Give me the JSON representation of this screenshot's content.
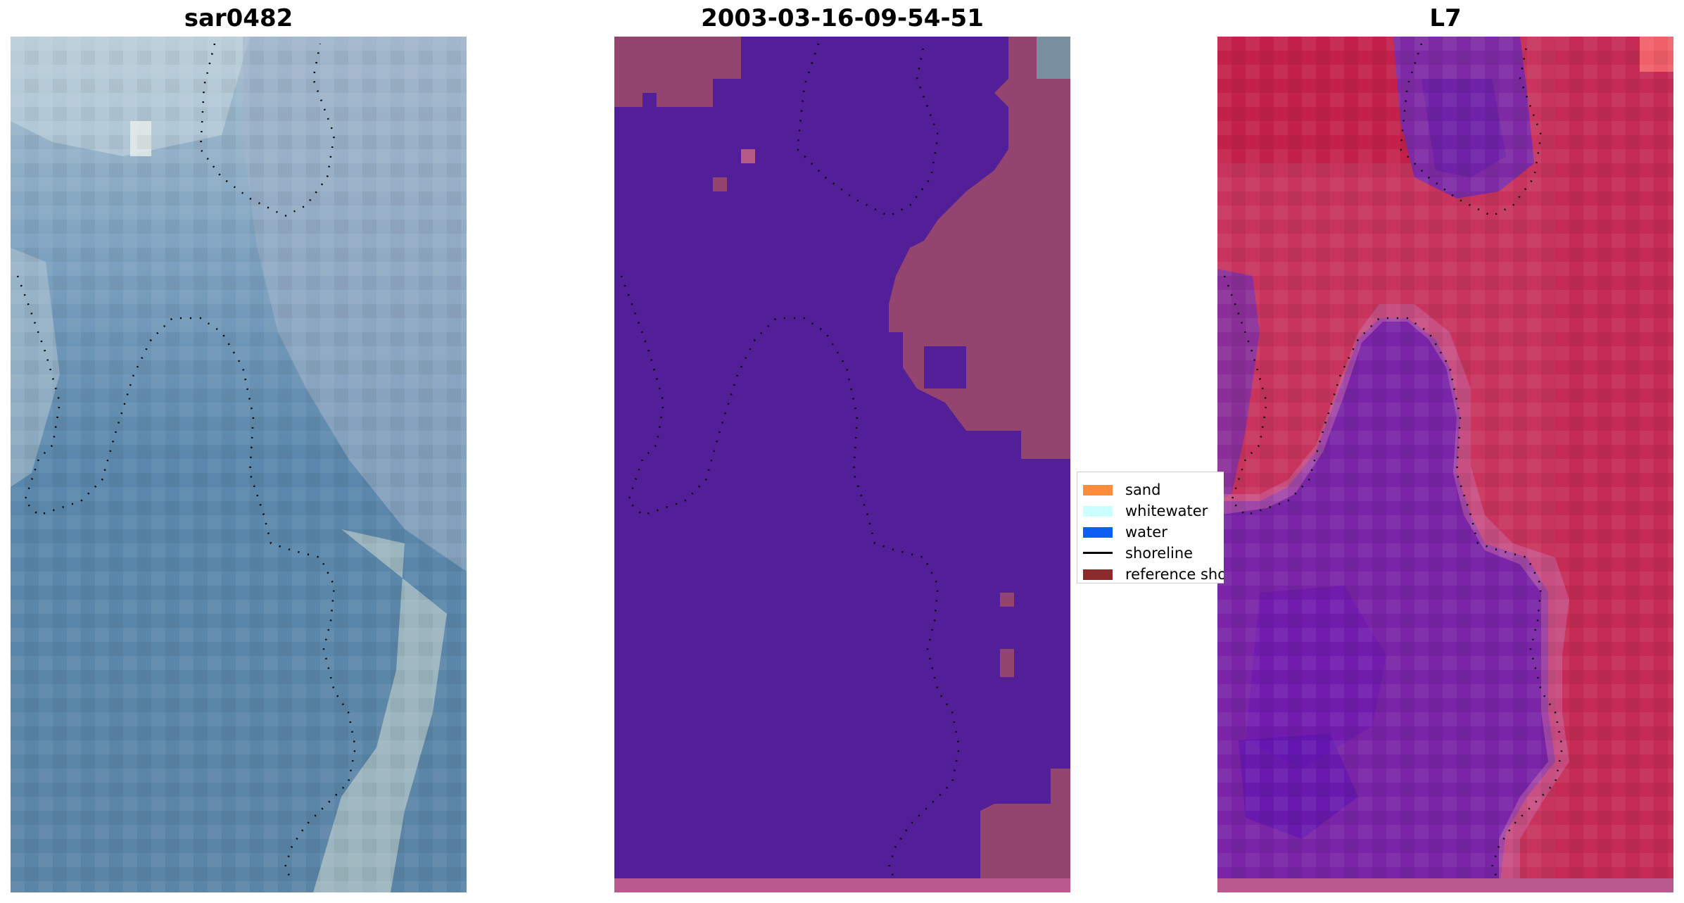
{
  "panels": [
    {
      "title": "sar0482"
    },
    {
      "title": "2003-03-16-09-54-51"
    },
    {
      "title": "L7"
    }
  ],
  "legend": {
    "items": [
      {
        "label": "sand",
        "color": "#ff8c3a"
      },
      {
        "label": "whitewater",
        "color": "#ccffff"
      },
      {
        "label": "water",
        "color": "#0c5ef5"
      },
      {
        "label": "shoreline",
        "color": "#000000"
      },
      {
        "label": "reference shoreline",
        "color": "#8b2b2b"
      }
    ]
  },
  "colors": {
    "classified_background": "#531f99",
    "classified_land": "#93446f",
    "strip": "#b9598f"
  }
}
